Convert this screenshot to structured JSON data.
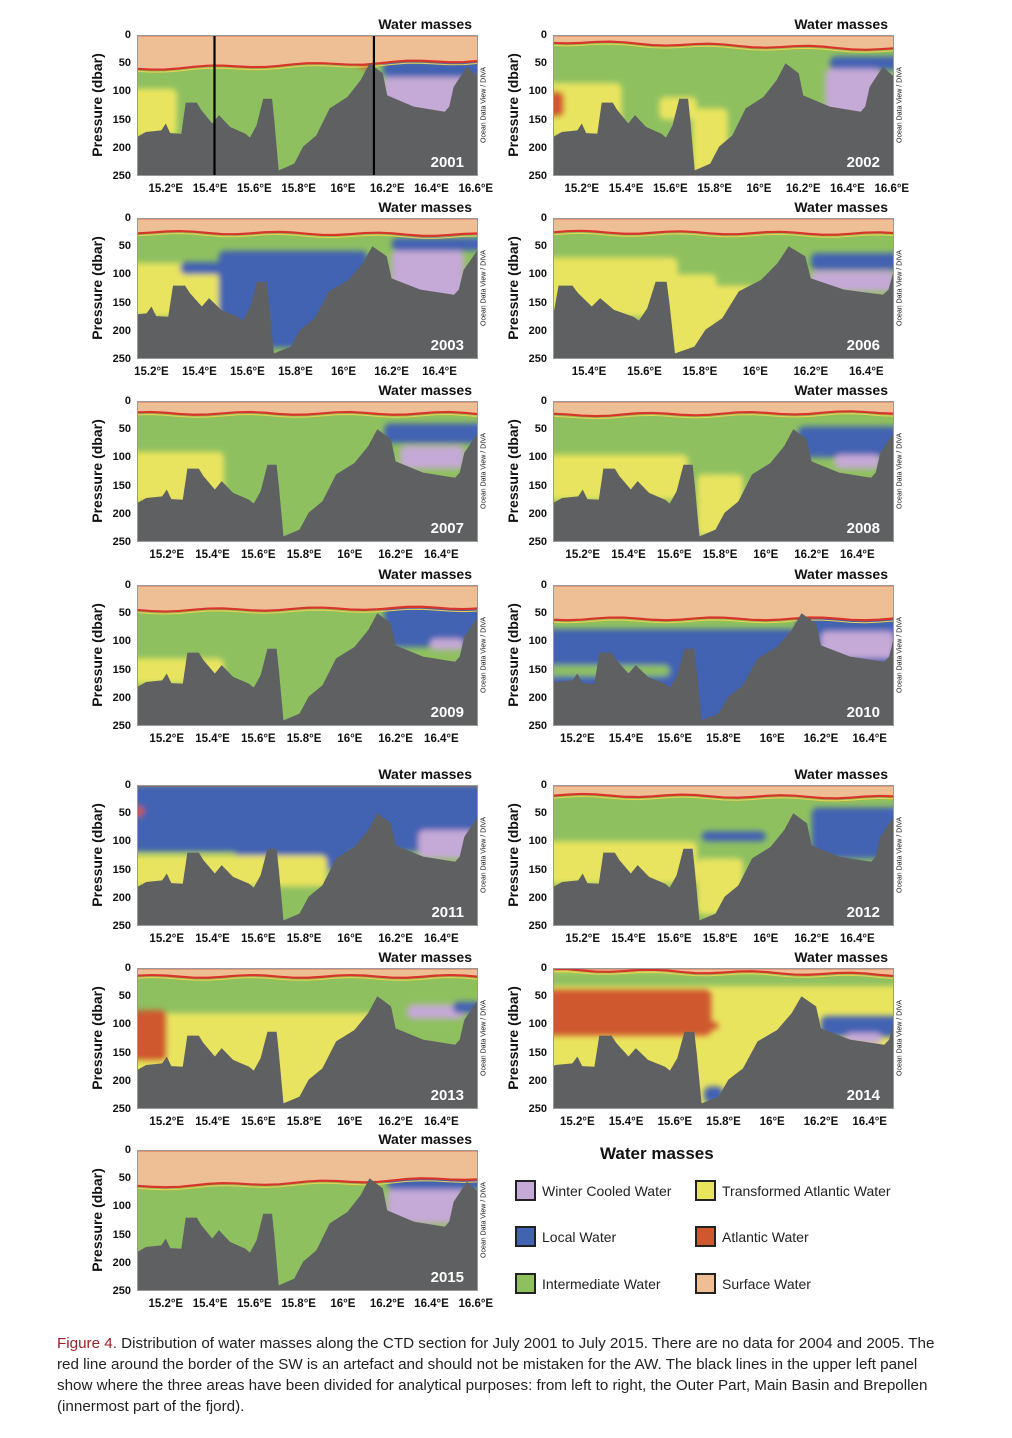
{
  "chart_data": {
    "type": "heatmap",
    "panel_title": "Water masses",
    "ylabel": "Pressure (dbar)",
    "yticks": [
      "0",
      "50",
      "100",
      "150",
      "200",
      "250"
    ],
    "ylim": [
      0,
      250
    ],
    "watermark": "Ocean Data View / DIVA",
    "divider_lines_2001": [
      15.42,
      16.14
    ],
    "masses": {
      "WCW": {
        "label": "Winter Cooled Water",
        "color": "#c5a9d6"
      },
      "LW": {
        "label": "Local Water",
        "color": "#4262b2"
      },
      "IW": {
        "label": "Intermediate Water",
        "color": "#8fc060"
      },
      "TAW": {
        "label": "Transformed Atlantic Water",
        "color": "#e9e45e"
      },
      "AW": {
        "label": "Atlantic Water",
        "color": "#d0582f"
      },
      "SW": {
        "label": "Surface Water",
        "color": "#eebf94"
      }
    },
    "bathymetry": [
      [
        15.0,
        181
      ],
      [
        15.07,
        181
      ],
      [
        15.11,
        172
      ],
      [
        15.18,
        169
      ],
      [
        15.2,
        157
      ],
      [
        15.22,
        174
      ],
      [
        15.27,
        175
      ],
      [
        15.29,
        120
      ],
      [
        15.34,
        120
      ],
      [
        15.36,
        133
      ],
      [
        15.41,
        157
      ],
      [
        15.44,
        142
      ],
      [
        15.49,
        163
      ],
      [
        15.56,
        175
      ],
      [
        15.58,
        182
      ],
      [
        15.61,
        160
      ],
      [
        15.64,
        113
      ],
      [
        15.68,
        113
      ],
      [
        15.69,
        151
      ],
      [
        15.71,
        240
      ],
      [
        15.78,
        228
      ],
      [
        15.82,
        198
      ],
      [
        15.88,
        178
      ],
      [
        15.94,
        130
      ],
      [
        16.02,
        110
      ],
      [
        16.08,
        80
      ],
      [
        16.12,
        50
      ],
      [
        16.18,
        68
      ],
      [
        16.2,
        107
      ],
      [
        16.32,
        127
      ],
      [
        16.46,
        136
      ],
      [
        16.48,
        127
      ],
      [
        16.5,
        92
      ],
      [
        16.56,
        56
      ],
      [
        16.61,
        74
      ],
      [
        16.7,
        74
      ]
    ],
    "panels": [
      {
        "year": "2001",
        "xlim": [
          15.07,
          16.61
        ],
        "xticks": [
          "15.2°E",
          "15.4°E",
          "15.6°E",
          "15.8°E",
          "16°E",
          "16.2°E",
          "16.4°E",
          "16.6°E"
        ],
        "xvals": [
          15.2,
          15.4,
          15.6,
          15.8,
          16,
          16.2,
          16.4,
          16.6
        ],
        "bg": "IW",
        "sw": [
          60,
          45
        ],
        "blobs": [
          [
            "TAW",
            15.0,
            15.25,
            95,
            180
          ],
          [
            "LW",
            16.18,
            16.7,
            45,
            75
          ],
          [
            "WCW",
            16.18,
            16.55,
            75,
            150
          ],
          [
            "AW",
            16.07,
            16.14,
            38,
            60
          ]
        ]
      },
      {
        "year": "2002",
        "xlim": [
          15.07,
          16.61
        ],
        "xticks": [
          "15.2°E",
          "15.4°E",
          "15.6°E",
          "15.8°E",
          "16°E",
          "16.2°E",
          "16.4°E",
          "16.6°E"
        ],
        "xvals": [
          15.2,
          15.4,
          15.6,
          15.8,
          16,
          16.2,
          16.4,
          16.6
        ],
        "bg": "IW",
        "sw": [
          12,
          25
        ],
        "blobs": [
          [
            "TAW",
            15.0,
            15.38,
            85,
            180
          ],
          [
            "AW",
            15.0,
            15.12,
            100,
            145
          ],
          [
            "TAW",
            15.55,
            15.72,
            110,
            150
          ],
          [
            "TAW",
            15.7,
            15.86,
            130,
            250
          ],
          [
            "LW",
            16.32,
            16.7,
            38,
            62
          ],
          [
            "WCW",
            16.3,
            16.55,
            60,
            150
          ]
        ]
      },
      {
        "year": "2003",
        "xlim": [
          15.14,
          16.56
        ],
        "xticks": [
          "15.2°E",
          "15.4°E",
          "15.6°E",
          "15.8°E",
          "16°E",
          "16.2°E",
          "16.4°E"
        ],
        "xvals": [
          15.2,
          15.4,
          15.6,
          15.8,
          16,
          16.2,
          16.4
        ],
        "bg": "IW",
        "sw": [
          25,
          30
        ],
        "blobs": [
          [
            "TAW",
            15.0,
            15.58,
            80,
            175
          ],
          [
            "LW",
            15.48,
            16.1,
            58,
            230
          ],
          [
            "LW",
            15.32,
            15.55,
            78,
            100
          ],
          [
            "LW",
            16.2,
            16.7,
            35,
            58
          ],
          [
            "WCW",
            16.2,
            16.5,
            58,
            150
          ]
        ]
      },
      {
        "year": "2006",
        "xlim": [
          15.27,
          16.5
        ],
        "xticks": [
          "15.4°E",
          "15.6°E",
          "15.8°E",
          "16°E",
          "16.2°E",
          "16.4°E"
        ],
        "xvals": [
          15.4,
          15.6,
          15.8,
          16,
          16.2,
          16.4
        ],
        "bg": "IW",
        "sw": [
          25,
          28
        ],
        "blobs": [
          [
            "TAW",
            15.2,
            15.72,
            70,
            175
          ],
          [
            "TAW",
            15.62,
            15.86,
            100,
            250
          ],
          [
            "TAW",
            15.75,
            16.0,
            120,
            185
          ],
          [
            "LW",
            16.2,
            16.7,
            62,
            92
          ],
          [
            "WCW",
            16.2,
            16.5,
            94,
            130
          ]
        ]
      },
      {
        "year": "2007",
        "xlim": [
          15.07,
          16.56
        ],
        "xticks": [
          "15.2°E",
          "15.4°E",
          "15.6°E",
          "15.8°E",
          "16°E",
          "16.2°E",
          "16.4°E"
        ],
        "xvals": [
          15.2,
          15.4,
          15.6,
          15.8,
          16,
          16.2,
          16.4
        ],
        "bg": "IW",
        "sw": [
          22,
          22
        ],
        "blobs": [
          [
            "TAW",
            15.0,
            15.45,
            90,
            180
          ],
          [
            "LW",
            16.15,
            16.7,
            40,
            75
          ],
          [
            "WCW",
            16.22,
            16.5,
            80,
            120
          ]
        ]
      },
      {
        "year": "2008",
        "xlim": [
          15.07,
          16.56
        ],
        "xticks": [
          "15.2°E",
          "15.4°E",
          "15.6°E",
          "15.8°E",
          "16°E",
          "16.2°E",
          "16.4°E"
        ],
        "xvals": [
          15.2,
          15.4,
          15.6,
          15.8,
          16,
          16.2,
          16.4
        ],
        "bg": "IW",
        "sw": [
          25,
          20
        ],
        "blobs": [
          [
            "TAW",
            15.0,
            15.66,
            95,
            175
          ],
          [
            "TAW",
            15.7,
            15.9,
            130,
            240
          ],
          [
            "LW",
            16.14,
            16.7,
            45,
            100
          ],
          [
            "WCW",
            16.3,
            16.5,
            95,
            120
          ]
        ]
      },
      {
        "year": "2009",
        "xlim": [
          15.07,
          16.56
        ],
        "xticks": [
          "15.2°E",
          "15.4°E",
          "15.6°E",
          "15.8°E",
          "16°E",
          "16.2°E",
          "16.4°E"
        ],
        "xvals": [
          15.2,
          15.4,
          15.6,
          15.8,
          16,
          16.2,
          16.4
        ],
        "bg": "IW",
        "sw": [
          45,
          40
        ],
        "blobs": [
          [
            "TAW",
            15.0,
            15.45,
            130,
            175
          ],
          [
            "LW",
            16.15,
            16.7,
            35,
            110
          ],
          [
            "WCW",
            16.35,
            16.5,
            95,
            115
          ]
        ]
      },
      {
        "year": "2010",
        "xlim": [
          15.1,
          16.5
        ],
        "xticks": [
          "15.2°E",
          "15.4°E",
          "15.6°E",
          "15.8°E",
          "16°E",
          "16.2°E",
          "16.4°E"
        ],
        "xvals": [
          15.2,
          15.4,
          15.6,
          15.8,
          16,
          16.2,
          16.4
        ],
        "bg": "IW",
        "sw": [
          60,
          60
        ],
        "blobs": [
          [
            "LW",
            15.0,
            16.7,
            78,
            250
          ],
          [
            "LW",
            16.1,
            16.7,
            0,
            78
          ],
          [
            "IW",
            15.0,
            15.58,
            142,
            162
          ],
          [
            "WCW",
            16.2,
            16.5,
            82,
            130
          ]
        ]
      },
      {
        "year": "2011",
        "xlim": [
          15.07,
          16.56
        ],
        "xticks": [
          "15.2°E",
          "15.4°E",
          "15.6°E",
          "15.8°E",
          "16°E",
          "16.2°E",
          "16.4°E"
        ],
        "xvals": [
          15.2,
          15.4,
          15.6,
          15.8,
          16,
          16.2,
          16.4
        ],
        "bg": "IW",
        "sw": [
          0,
          0
        ],
        "blobs": [
          [
            "LW",
            15.0,
            16.7,
            0,
            118
          ],
          [
            "LW",
            15.5,
            16.0,
            100,
            150
          ],
          [
            "TAW",
            15.0,
            15.9,
            125,
            180
          ],
          [
            "WCW",
            16.3,
            16.55,
            80,
            130
          ],
          [
            "AW",
            15.0,
            15.1,
            38,
            55
          ]
        ]
      },
      {
        "year": "2012",
        "xlim": [
          15.07,
          16.56
        ],
        "xticks": [
          "15.2°E",
          "15.4°E",
          "15.6°E",
          "15.8°E",
          "16°E",
          "16.2°E",
          "16.4°E"
        ],
        "xvals": [
          15.2,
          15.4,
          15.6,
          15.8,
          16,
          16.2,
          16.4
        ],
        "bg": "IW",
        "sw": [
          18,
          22
        ],
        "blobs": [
          [
            "TAW",
            15.0,
            15.7,
            100,
            175
          ],
          [
            "TAW",
            15.7,
            15.9,
            130,
            230
          ],
          [
            "LW",
            16.2,
            16.7,
            40,
            130
          ],
          [
            "LW",
            15.72,
            16.0,
            82,
            100
          ]
        ]
      },
      {
        "year": "2013",
        "xlim": [
          15.07,
          16.56
        ],
        "xticks": [
          "15.2°E",
          "15.4°E",
          "15.6°E",
          "15.8°E",
          "16°E",
          "16.2°E",
          "16.4°E"
        ],
        "xvals": [
          15.2,
          15.4,
          15.6,
          15.8,
          16,
          16.2,
          16.4
        ],
        "bg": "IW",
        "sw": [
          15,
          15
        ],
        "blobs": [
          [
            "TAW",
            15.0,
            16.15,
            80,
            250
          ],
          [
            "AW",
            15.0,
            15.2,
            75,
            165
          ],
          [
            "WCW",
            16.25,
            16.5,
            65,
            90
          ],
          [
            "LW",
            16.45,
            16.58,
            60,
            80
          ]
        ]
      },
      {
        "year": "2014",
        "xlim": [
          15.1,
          16.5
        ],
        "xticks": [
          "15.2°E",
          "15.4°E",
          "15.6°E",
          "15.8°E",
          "16°E",
          "16.2°E",
          "16.4°E"
        ],
        "xvals": [
          15.2,
          15.4,
          15.6,
          15.8,
          16,
          16.2,
          16.4
        ],
        "bg": "TAW",
        "sw": [
          3,
          12
        ],
        "blobs": [
          [
            "IW",
            15.0,
            16.7,
            5,
            32
          ],
          [
            "AW",
            15.0,
            15.75,
            38,
            120
          ],
          [
            "AW",
            15.6,
            15.78,
            95,
            110
          ],
          [
            "LW",
            16.2,
            16.7,
            85,
            122
          ],
          [
            "WCW",
            16.3,
            16.45,
            115,
            135
          ],
          [
            "LW",
            15.72,
            15.8,
            210,
            240
          ]
        ]
      },
      {
        "year": "2015",
        "xlim": [
          15.07,
          16.61
        ],
        "xticks": [
          "15.2°E",
          "15.4°E",
          "15.6°E",
          "15.8°E",
          "16°E",
          "16.2°E",
          "16.4°E",
          "16.6°E"
        ],
        "xvals": [
          15.2,
          15.4,
          15.6,
          15.8,
          16,
          16.2,
          16.4,
          16.6
        ],
        "bg": "IW",
        "sw": [
          65,
          50
        ],
        "blobs": [
          [
            "LW",
            16.2,
            16.7,
            40,
            70
          ],
          [
            "WCW",
            16.2,
            16.55,
            70,
            130
          ]
        ]
      }
    ]
  },
  "legend": {
    "title": "Water masses",
    "items": [
      {
        "key": "WCW",
        "label": "Winter Cooled Water"
      },
      {
        "key": "TAW",
        "label": "Transformed Atlantic Water"
      },
      {
        "key": "LW",
        "label": "Local Water"
      },
      {
        "key": "AW",
        "label": "Atlantic Water"
      },
      {
        "key": "IW",
        "label": "Intermediate Water"
      },
      {
        "key": "SW",
        "label": "Surface Water"
      }
    ]
  },
  "caption": {
    "label": "Figure 4.",
    "text": " Distribution of water masses along the CTD section for July 2001 to July 2015. There are no data for 2004 and 2005. The red line around the border of the SW is an artefact and should not be mistaken for the AW. The black lines in the upper left panel show where the three areas have been divided for analytical purposes: from left to right, the Outer Part, Main Basin and Brepollen (innermost part of the fjord)."
  }
}
